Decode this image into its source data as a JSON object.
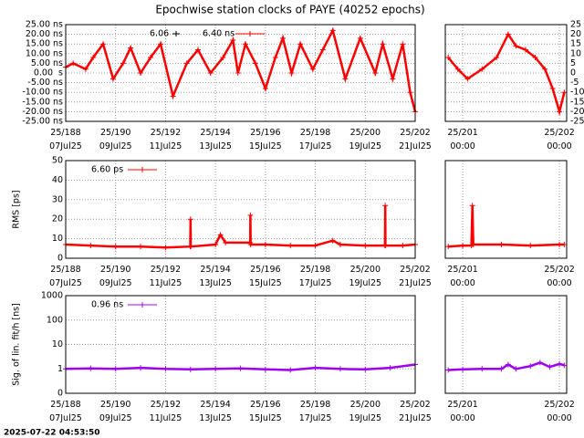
{
  "chart_data": [
    {
      "type": "line",
      "title": "Epochwise station clocks of PAYE (40252 epochs)",
      "annotations": [
        "6.06"
      ],
      "x": [
        188.0,
        188.3,
        188.8,
        189.1,
        189.5,
        189.9,
        190.3,
        190.6,
        191.0,
        191.4,
        191.8,
        192.3,
        192.85,
        193.3,
        193.8,
        194.3,
        194.7,
        194.9,
        195.2,
        195.6,
        196.0,
        196.4,
        196.7,
        197.05,
        197.4,
        197.9,
        198.3,
        198.7,
        199.2,
        199.8,
        200.4,
        200.7,
        201.1,
        201.5,
        201.8,
        202.0
      ],
      "series": [
        {
          "name": "6.40 ns",
          "color": "#ff0000",
          "values": [
            3,
            5,
            2,
            8,
            15,
            -3,
            5,
            13,
            0,
            8,
            15,
            -12,
            5,
            12,
            0,
            8,
            17,
            0,
            15,
            5,
            -8,
            8,
            18,
            0,
            15,
            2,
            12,
            22,
            -3,
            18,
            0,
            15,
            -3,
            15,
            -10,
            -20
          ]
        }
      ],
      "xlim": [
        188,
        202
      ],
      "xticks": [
        {
          "value": 188,
          "label": "25/188 07Jul25"
        },
        {
          "value": 190,
          "label": "25/190 09Jul25"
        },
        {
          "value": 192,
          "label": "25/192 11Jul25"
        },
        {
          "value": 194,
          "label": "25/194 13Jul25"
        },
        {
          "value": 196,
          "label": "25/196 15Jul25"
        },
        {
          "value": 198,
          "label": "25/198 17Jul25"
        },
        {
          "value": 200,
          "label": "25/200 19Jul25"
        },
        {
          "value": 202,
          "label": "25/202 21Jul25"
        }
      ],
      "ylim": [
        -25,
        25
      ],
      "yticks": [
        {
          "value": 25,
          "label": "25.00 ns"
        },
        {
          "value": 20,
          "label": "20.00 ns"
        },
        {
          "value": 15,
          "label": "15.00 ns"
        },
        {
          "value": 10,
          "label": "10.00 ns"
        },
        {
          "value": 5,
          "label": "5.00 ns"
        },
        {
          "value": 0,
          "label": "0.00  s"
        },
        {
          "value": -5,
          "label": "-5.00 ns"
        },
        {
          "value": -10,
          "label": "-10.00 ns"
        },
        {
          "value": -15,
          "label": "-15.00 ns"
        },
        {
          "value": -20,
          "label": "-20.00 ns"
        },
        {
          "value": -25,
          "label": "-25.00 ns"
        }
      ],
      "grid": true
    },
    {
      "type": "line",
      "x": [
        200.85,
        200.95,
        201.05,
        201.2,
        201.35,
        201.47,
        201.55,
        201.65,
        201.75,
        201.85,
        201.93,
        202.0,
        202.05
      ],
      "series": [
        {
          "color": "#ff0000",
          "values": [
            8,
            2,
            -3,
            2,
            8,
            20,
            14,
            12,
            8,
            2,
            -8,
            -20,
            -10
          ]
        }
      ],
      "xlim": [
        200.82,
        202.075
      ],
      "xticks": [
        {
          "value": 201,
          "label": "25/201 00:00"
        },
        {
          "value": 202,
          "label": "25/202 00:00"
        }
      ],
      "ylim": [
        -25,
        25
      ],
      "yticks": [
        25,
        20,
        15,
        10,
        5,
        0,
        -5,
        -10,
        -15,
        -20,
        -25
      ],
      "grid": true
    },
    {
      "type": "line",
      "ylabel": "RMS [ps]",
      "x": [
        188,
        189,
        190,
        191,
        192,
        192.99,
        193.0,
        193.01,
        194,
        194.2,
        194.4,
        195.39,
        195.4,
        195.41,
        196,
        197,
        198,
        198.7,
        199,
        200,
        200.79,
        200.8,
        200.81,
        201.5,
        202
      ],
      "series": [
        {
          "name": "6.60 ps",
          "color": "#ff0000",
          "values": [
            7,
            6.5,
            6,
            6,
            5.5,
            6,
            20,
            6,
            7,
            12,
            8,
            8,
            22,
            7,
            7,
            6.5,
            6.5,
            9,
            7,
            6.5,
            6.5,
            27,
            6.5,
            6.5,
            7
          ]
        }
      ],
      "xlim": [
        188,
        202
      ],
      "xticks": [
        {
          "value": 188,
          "label": "25/188 07Jul25"
        },
        {
          "value": 190,
          "label": "25/190 09Jul25"
        },
        {
          "value": 192,
          "label": "25/192 11Jul25"
        },
        {
          "value": 194,
          "label": "25/194 13Jul25"
        },
        {
          "value": 196,
          "label": "25/196 15Jul25"
        },
        {
          "value": 198,
          "label": "25/198 17Jul25"
        },
        {
          "value": 200,
          "label": "25/200 19Jul25"
        },
        {
          "value": 202,
          "label": "25/202 21Jul25"
        }
      ],
      "ylim": [
        0,
        50
      ],
      "yticks": [
        0,
        10,
        20,
        30,
        40,
        50
      ],
      "grid": true
    },
    {
      "type": "line",
      "x": [
        200.85,
        201.0,
        201.09,
        201.1,
        201.11,
        201.4,
        201.7,
        202.0,
        202.05
      ],
      "series": [
        {
          "color": "#ff0000",
          "values": [
            6,
            6.5,
            6.5,
            27,
            7,
            7,
            6.5,
            7,
            7
          ]
        }
      ],
      "xlim": [
        200.82,
        202.075
      ],
      "xticks": [
        {
          "value": 201,
          "label": "25/201 00:00"
        },
        {
          "value": 202,
          "label": "25/202 00:00"
        }
      ],
      "ylim": [
        0,
        50
      ],
      "grid": true
    },
    {
      "type": "line",
      "ylabel": "Sig. of lin. fit/h [ns]",
      "log_scale": true,
      "x": [
        188,
        189,
        190,
        191,
        192,
        193,
        194,
        195,
        196,
        197,
        198,
        199,
        200,
        201,
        202
      ],
      "series": [
        {
          "name": "0.96 ns",
          "color": "#a000f0",
          "values": [
            1,
            1.05,
            1,
            1.1,
            1,
            0.95,
            1,
            1.05,
            0.95,
            0.9,
            1.1,
            1,
            0.95,
            1.1,
            1.5
          ]
        }
      ],
      "xlim": [
        188,
        202
      ],
      "xticks": [
        {
          "value": 188,
          "label": "25/188 07Jul25"
        },
        {
          "value": 190,
          "label": "25/190 09Jul25"
        },
        {
          "value": 192,
          "label": "25/192 11Jul25"
        },
        {
          "value": 194,
          "label": "25/194 13Jul25"
        },
        {
          "value": 196,
          "label": "25/196 15Jul25"
        },
        {
          "value": 198,
          "label": "25/198 17Jul25"
        },
        {
          "value": 200,
          "label": "25/200 19Jul25"
        },
        {
          "value": 202,
          "label": "25/202 21Jul25"
        }
      ],
      "ylim": [
        0.1,
        1000
      ],
      "yticks": [
        1000,
        100,
        10,
        1,
        {
          "value": 0.1,
          "label": "0"
        }
      ],
      "grid": true
    },
    {
      "type": "line",
      "log_scale": true,
      "x": [
        200.85,
        201.0,
        201.2,
        201.4,
        201.47,
        201.55,
        201.7,
        201.8,
        201.9,
        202.0,
        202.05
      ],
      "series": [
        {
          "color": "#a000f0",
          "values": [
            0.9,
            0.95,
            1,
            1,
            1.5,
            1,
            1.3,
            1.8,
            1.2,
            1.6,
            1.4
          ]
        }
      ],
      "xlim": [
        200.82,
        202.075
      ],
      "xticks": [
        {
          "value": 201,
          "label": "25/201 00:00"
        },
        {
          "value": 202,
          "label": "25/202 00:00"
        }
      ],
      "ylim": [
        0.1,
        1000
      ],
      "grid": true
    }
  ],
  "footer": "2025-07-22 04:53:50"
}
